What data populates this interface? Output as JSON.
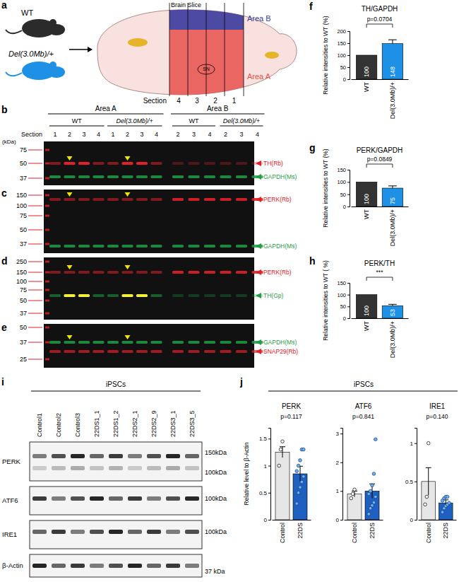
{
  "panel_labels": [
    "a",
    "b",
    "c",
    "d",
    "e",
    "f",
    "g",
    "h",
    "i",
    "j"
  ],
  "diagram": {
    "mice": [
      {
        "label": "WT",
        "color": "#2b2b2b"
      },
      {
        "label": "Del(3.0Mb)/+",
        "color": "#1e90e6"
      }
    ],
    "brain_slice": "Brain Slice",
    "area_b": {
      "label": "Area B",
      "color": "#3a3a9c"
    },
    "area_a": {
      "label": "Area A",
      "color": "#e8504e"
    },
    "section_label": "Section",
    "sections": [
      4,
      3,
      2,
      1
    ],
    "sn": "SN"
  },
  "blots": {
    "areas": [
      "Area A",
      "Area B"
    ],
    "groups": [
      "WT",
      "Del(3.0Mb)/+",
      "WT",
      "Del(3.0Mb)/+"
    ],
    "section_label": "Section",
    "lanes": [
      1,
      2,
      3,
      4,
      1,
      2,
      3,
      4,
      2,
      3,
      4,
      2,
      3,
      4
    ],
    "kda_label": "(kDa)",
    "panels": [
      {
        "markers": [
          75,
          50,
          37
        ],
        "labels": [
          {
            "text": "TH(Rb)",
            "color": "#e0202a"
          },
          {
            "text": "GAPDH(Ms)",
            "color": "#1f9e45"
          }
        ]
      },
      {
        "markers": [
          150,
          100,
          75,
          50,
          37
        ],
        "labels": [
          {
            "text": "PERK(Rb)",
            "color": "#e0202a"
          },
          {
            "text": "GAPDH(Ms)",
            "color": "#1f9e45"
          }
        ]
      },
      {
        "markers": [
          250,
          150,
          100,
          75,
          50,
          37
        ],
        "labels": [
          {
            "text": "PERK(Rb)",
            "color": "#e0202a"
          },
          {
            "text": "TH(Gp)",
            "color": "#1f9e45"
          }
        ]
      },
      {
        "markers": [
          50,
          37,
          25
        ],
        "labels": [
          {
            "text": "GAPDH(Ms)",
            "color": "#1f9e45"
          },
          {
            "text": "SNAP29(Rb)",
            "color": "#e0202a"
          }
        ]
      }
    ]
  },
  "ipsc_blot": {
    "title": "iPSCs",
    "lanes": [
      "Control1",
      "Control2",
      "Control3",
      "22DS1_1",
      "22DS1_2",
      "22DS2_1",
      "22DS2_9",
      "22DS3_1",
      "22DS3_5"
    ],
    "rows": [
      {
        "label": "PERK",
        "markers": [
          "150kDa",
          "100kDa"
        ]
      },
      {
        "label": "ATF6",
        "markers": [
          "100kDa"
        ]
      },
      {
        "label": "IRE1",
        "markers": [
          "100kDa"
        ]
      },
      {
        "label": "β-Actin",
        "markers": [
          "37 kDa"
        ]
      }
    ]
  },
  "j_title": "iPSCs",
  "chart_data": [
    {
      "type": "bar",
      "title": "TH/GAPDH",
      "y_label": "Relative intensities to WT (%)",
      "categories": [
        "WT",
        "Del(3.0Mb)/+"
      ],
      "values": [
        100,
        148
      ],
      "errors": [
        null,
        16
      ],
      "colors": [
        "#333333",
        "#1e90e6"
      ],
      "ylim": [
        0,
        200
      ],
      "yticks": [
        0,
        50,
        100,
        150,
        200
      ],
      "data_labels": true,
      "annotation": "p=0.0704"
    },
    {
      "type": "bar",
      "title": "PERK/GAPDH",
      "y_label": "Relative intensities to WT (%)",
      "categories": [
        "WT",
        "Del(3.0Mb)/+"
      ],
      "values": [
        100,
        75
      ],
      "errors": [
        null,
        9
      ],
      "colors": [
        "#333333",
        "#1e90e6"
      ],
      "ylim": [
        0,
        150
      ],
      "yticks": [
        0,
        50,
        100,
        150
      ],
      "data_labels": true,
      "annotation": "p=0.0849"
    },
    {
      "type": "bar",
      "title": "PERK/TH",
      "y_label": "Relative intensities to WT ( %)",
      "categories": [
        "WT",
        "Del(3.0Mb)/+"
      ],
      "values": [
        100,
        53
      ],
      "errors": [
        null,
        6
      ],
      "colors": [
        "#333333",
        "#1e90e6"
      ],
      "ylim": [
        0,
        150
      ],
      "yticks": [
        0,
        50,
        100,
        150
      ],
      "data_labels": true,
      "annotation": "***"
    },
    {
      "type": "bar",
      "title": "PERK",
      "y_label": "Relative level to β-Actin",
      "categories": [
        "Control",
        "22DS"
      ],
      "values": [
        1.25,
        0.85
      ],
      "errors": [
        0.1,
        0.14
      ],
      "points": [
        [
          1.0,
          1.3,
          1.45
        ],
        [
          0.3,
          0.5,
          0.6,
          0.7,
          0.8,
          0.9,
          1.0,
          1.1,
          1.3,
          1.3
        ]
      ],
      "colors": [
        "#e6e6e6",
        "#1f5fbf"
      ],
      "ylim": [
        0,
        1.7
      ],
      "yticks": [
        0,
        0.5,
        1,
        1.5
      ],
      "annotation": "p=0.117"
    },
    {
      "type": "bar",
      "title": "ATF6",
      "categories": [
        "Control",
        "22DS"
      ],
      "values": [
        0.9,
        1.0
      ],
      "errors": [
        0.1,
        0.25
      ],
      "points": [
        [
          0.75,
          0.9,
          1.05
        ],
        [
          0.2,
          0.4,
          0.5,
          0.6,
          0.8,
          0.9,
          1.0,
          1.2,
          1.6,
          2.8
        ]
      ],
      "colors": [
        "#e6e6e6",
        "#1f5fbf"
      ],
      "ylim": [
        0,
        3.2
      ],
      "yticks": [
        0,
        1,
        2,
        3
      ],
      "annotation": "p=0.841"
    },
    {
      "type": "bar",
      "title": "IRE1",
      "categories": [
        "Control",
        "22DS"
      ],
      "values": [
        0.5,
        0.22
      ],
      "errors": [
        0.18,
        0.04
      ],
      "points": [
        [
          0.2,
          0.3,
          1.0
        ],
        [
          0.1,
          0.15,
          0.18,
          0.2,
          0.22,
          0.25,
          0.28,
          0.3,
          0.3
        ]
      ],
      "colors": [
        "#e6e6e6",
        "#1f5fbf"
      ],
      "ylim": [
        0,
        1.2
      ],
      "yticks": [
        0,
        0.5,
        1
      ],
      "annotation": "p=0.140"
    }
  ]
}
